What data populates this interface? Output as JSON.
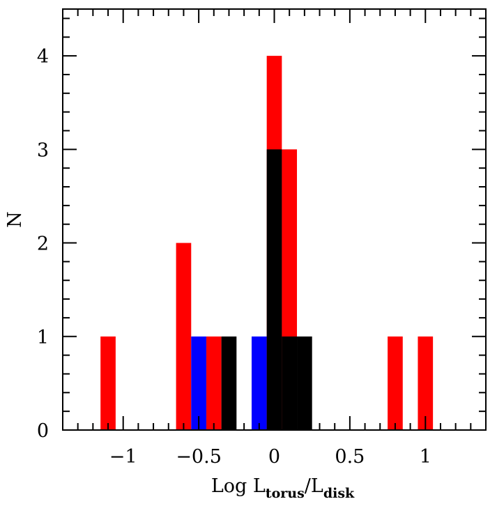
{
  "chart_data": {
    "type": "bar",
    "title": "",
    "xlabel": {
      "prefix": "Log  L",
      "sub1": "torus",
      "slash": "/L",
      "sub2": "disk"
    },
    "ylabel": "N",
    "xlim": [
      -1.4,
      1.4
    ],
    "ylim": [
      0,
      4.5
    ],
    "grid": false,
    "x_ticks": [
      -1,
      -0.5,
      0,
      0.5,
      1
    ],
    "x_tick_labels": [
      "−1",
      "−0.5",
      "0",
      "0.5",
      "1"
    ],
    "y_ticks": [
      0,
      1,
      2,
      3,
      4
    ],
    "y_tick_labels": [
      "0",
      "1",
      "2",
      "3",
      "4"
    ],
    "bin_width": 0.1,
    "series": [
      {
        "color": "#ff0000",
        "bins": [
          {
            "x": -1.1,
            "count": 1
          },
          {
            "x": -0.6,
            "count": 2
          },
          {
            "x": -0.4,
            "count": 1
          },
          {
            "x": 0.0,
            "count": 4
          },
          {
            "x": 0.1,
            "count": 3
          },
          {
            "x": 0.8,
            "count": 1
          },
          {
            "x": 1.0,
            "count": 1
          }
        ]
      },
      {
        "color": "#0000ff",
        "bins": [
          {
            "x": -0.5,
            "count": 1
          },
          {
            "x": -0.1,
            "count": 1
          }
        ]
      },
      {
        "color": "#000000",
        "bins": [
          {
            "x": -0.3,
            "count": 1
          },
          {
            "x": 0.0,
            "count": 3
          },
          {
            "x": 0.1,
            "count": 1
          },
          {
            "x": 0.2,
            "count": 1
          }
        ]
      }
    ]
  }
}
